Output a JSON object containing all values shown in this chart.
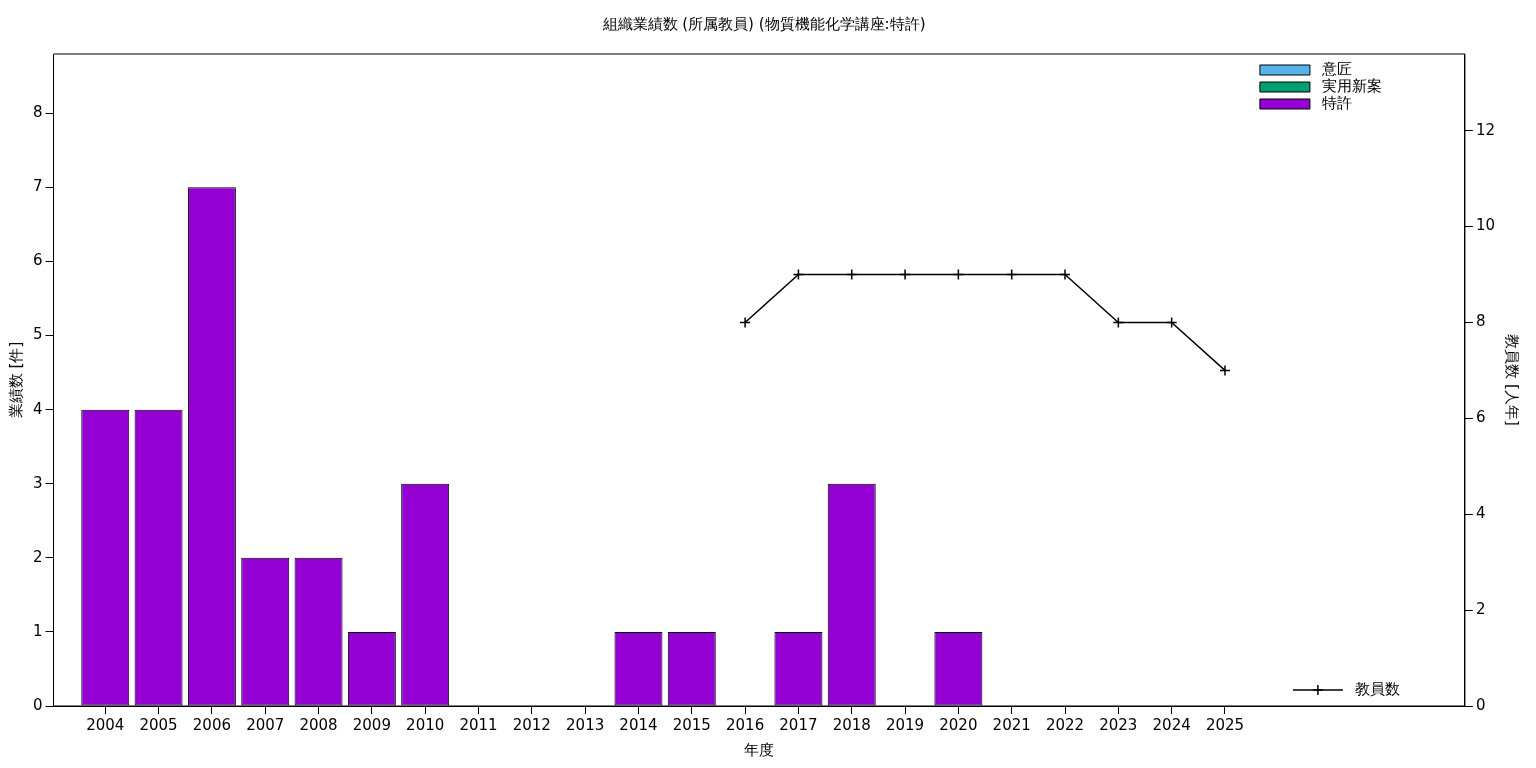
{
  "chart_data": {
    "type": "bar",
    "title": "組織業績数 (所属教員) (物質機能化学講座:特許)",
    "xlabel": "年度",
    "ylabel": "業績数 [件]",
    "y2label": "教員数 [人年]",
    "x": [
      2004,
      2005,
      2006,
      2007,
      2008,
      2009,
      2010,
      2011,
      2012,
      2013,
      2014,
      2015,
      2016,
      2017,
      2018,
      2019,
      2020,
      2021,
      2022,
      2023,
      2024,
      2025
    ],
    "xlim": [
      2003.03,
      2029.5
    ],
    "xticks": [
      2004,
      2005,
      2006,
      2007,
      2008,
      2009,
      2010,
      2011,
      2012,
      2013,
      2014,
      2015,
      2016,
      2017,
      2018,
      2019,
      2020,
      2021,
      2022,
      2023,
      2024,
      2025
    ],
    "ylim": [
      0,
      8.8
    ],
    "yticks": [
      0,
      1,
      2,
      3,
      4,
      5,
      6,
      7,
      8
    ],
    "y2lim": [
      0,
      13.6
    ],
    "y2ticks": [
      0,
      2,
      4,
      6,
      8,
      10,
      12
    ],
    "stacked": true,
    "grid": false,
    "legend": "top right",
    "series": [
      {
        "name": "意匠",
        "color": "#56b4e9",
        "values": [
          0,
          0,
          0,
          0,
          0,
          0,
          0,
          0,
          0,
          0,
          0,
          0,
          0,
          0,
          0,
          0,
          0,
          0,
          0,
          0,
          0,
          0
        ]
      },
      {
        "name": "実用新案",
        "color": "#009e73",
        "values": [
          0,
          0,
          0,
          0,
          0,
          0,
          0,
          0,
          0,
          0,
          0,
          0,
          0,
          0,
          0,
          0,
          0,
          0,
          0,
          0,
          0,
          0
        ]
      },
      {
        "name": "特許",
        "color": "#9400d3",
        "values": [
          4,
          4,
          7,
          2,
          2,
          1,
          3,
          0,
          0,
          0,
          1,
          1,
          0,
          1,
          3,
          0,
          1,
          0,
          0,
          0,
          0,
          0
        ]
      },
      {
        "name": "教員数",
        "type": "line",
        "axis": "y2",
        "color": "#000000",
        "marker": "cross",
        "line_style": "solid",
        "values": [
          null,
          null,
          null,
          null,
          null,
          null,
          null,
          null,
          null,
          null,
          null,
          null,
          8,
          9,
          9,
          9,
          9,
          9,
          9,
          8,
          8,
          7
        ]
      }
    ]
  }
}
